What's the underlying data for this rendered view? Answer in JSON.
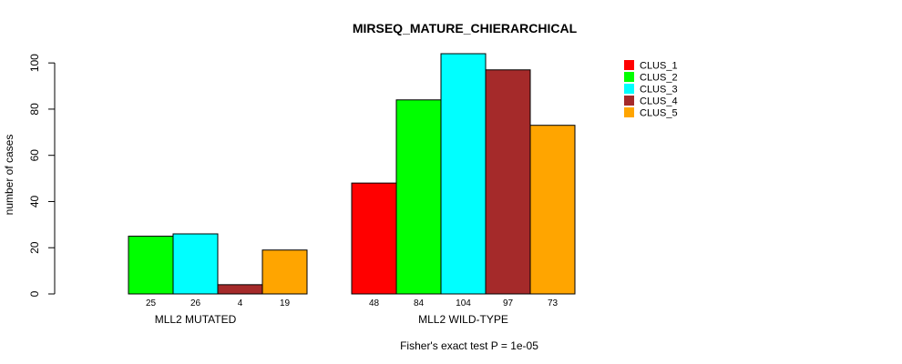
{
  "chart_data": {
    "type": "bar",
    "title": "MIRSEQ_MATURE_CHIERARCHICAL",
    "ylabel": "number of cases",
    "xlabel": "",
    "footnote": "Fisher's exact test P = 1e-05",
    "ylim": [
      0,
      104
    ],
    "yticks": [
      0,
      20,
      40,
      60,
      80,
      100
    ],
    "groups": [
      "MLL2 MUTATED",
      "MLL2 WILD-TYPE"
    ],
    "series": [
      {
        "name": "CLUS_1",
        "color": "#ff0000",
        "values": [
          0,
          48
        ]
      },
      {
        "name": "CLUS_2",
        "color": "#00ff00",
        "values": [
          25,
          84
        ]
      },
      {
        "name": "CLUS_3",
        "color": "#00ffff",
        "values": [
          26,
          104
        ]
      },
      {
        "name": "CLUS_4",
        "color": "#a52a2a",
        "values": [
          4,
          97
        ]
      },
      {
        "name": "CLUS_5",
        "color": "#ffa500",
        "values": [
          19,
          73
        ]
      }
    ],
    "count_labels": [
      [
        "",
        "25",
        "26",
        "4",
        "19"
      ],
      [
        "48",
        "84",
        "104",
        "97",
        "73"
      ]
    ],
    "legend_position": "top-right",
    "grid": false
  }
}
